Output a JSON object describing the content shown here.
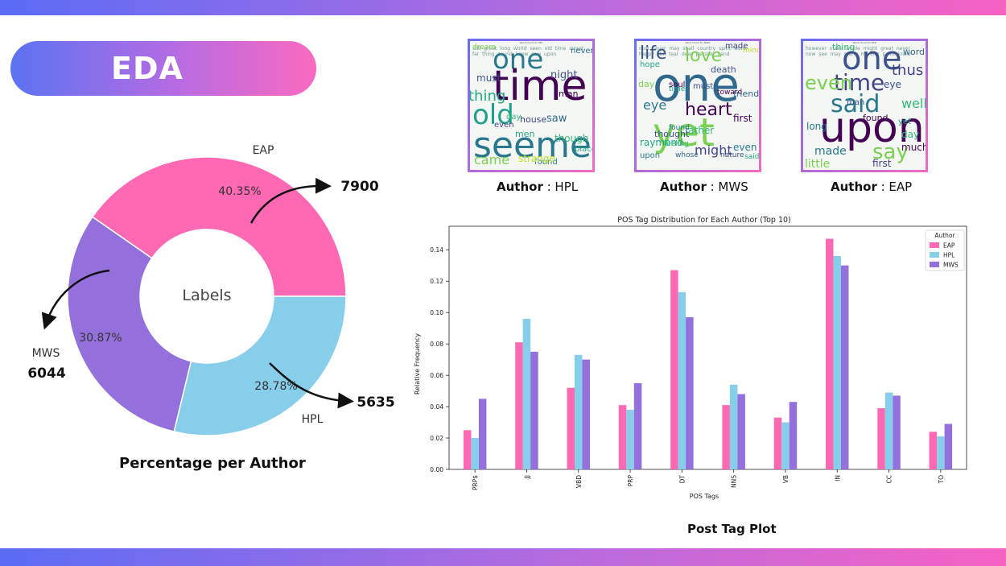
{
  "header": {
    "title": "EDA"
  },
  "colors": {
    "eap": "#ff69b4",
    "hpl": "#87ceeb",
    "mws": "#9370db",
    "accent_start": "#5b6cf5",
    "accent_end": "#f762c4"
  },
  "icons": [
    "curved-arrow-icon"
  ],
  "donut": {
    "center_label": "Labels",
    "caption": "Percentage per Author",
    "slices": [
      {
        "name": "EAP",
        "percent_label": "40.35%",
        "count": "7900",
        "value": 40.35
      },
      {
        "name": "HPL",
        "percent_label": "28.78%",
        "count": "5635",
        "value": 28.78
      },
      {
        "name": "MWS",
        "percent_label": "30.87%",
        "count": "6044",
        "value": 30.87
      }
    ]
  },
  "wordclouds": [
    {
      "caption_bold": "Author",
      "caption_rest": " : HPL",
      "title": "Word Cloud for HPL",
      "big_words": [
        "one",
        "time",
        "old",
        "seemed",
        "thing",
        "came",
        "saw",
        "though",
        "house",
        "night",
        "men",
        "even",
        "found",
        "must",
        "dream",
        "man",
        "never",
        "place",
        "strange",
        "day"
      ],
      "small_words": "still great long world seen old time street far thing sound know saw upon"
    },
    {
      "caption_bold": "Author",
      "caption_rest": " : MWS",
      "title": "Word Cloud for MWS",
      "big_words": [
        "life",
        "one",
        "yet",
        "love",
        "heart",
        "eye",
        "might",
        "even",
        "death",
        "father",
        "first",
        "thought",
        "hope",
        "made",
        "friend",
        "day",
        "upon",
        "time",
        "must",
        "raymond",
        "soul",
        "mind",
        "feeling",
        "found",
        "whose",
        "toward",
        "nature",
        "said"
      ],
      "small_words": "now never may shall country spirit word happy still tear dear passion hand"
    },
    {
      "caption_bold": "Author",
      "caption_rest": " : EAP",
      "title": "Word Cloud for EAP",
      "big_words": [
        "upon",
        "one",
        "time",
        "said",
        "say",
        "even",
        "well",
        "thus",
        "made",
        "little",
        "first",
        "much",
        "day",
        "eye",
        "word",
        "found",
        "thing",
        "man",
        "long",
        "yet"
      ],
      "small_words": "however make whole might great never now see may many manner point know"
    }
  ],
  "pos_caption": "Post Tag Plot",
  "chart_data": [
    {
      "type": "pie",
      "title": "",
      "center_label": "Labels",
      "categories": [
        "EAP",
        "HPL",
        "MWS"
      ],
      "values": [
        40.35,
        28.78,
        30.87
      ],
      "counts": [
        7900,
        5635,
        6044
      ],
      "legend": "none"
    },
    {
      "type": "bar",
      "title": "POS Tag Distribution for Each Author (Top 10)",
      "xlabel": "POS Tags",
      "ylabel": "Relative Frequency",
      "categories": [
        "PRP$",
        "JJ",
        "VBD",
        "PRP",
        "DT",
        "NNS",
        "VB",
        "IN",
        "CC",
        "TO"
      ],
      "series": [
        {
          "name": "EAP",
          "values": [
            0.025,
            0.081,
            0.052,
            0.041,
            0.127,
            0.041,
            0.033,
            0.147,
            0.039,
            0.024
          ]
        },
        {
          "name": "HPL",
          "values": [
            0.02,
            0.096,
            0.073,
            0.038,
            0.113,
            0.054,
            0.03,
            0.136,
            0.049,
            0.021
          ]
        },
        {
          "name": "MWS",
          "values": [
            0.045,
            0.075,
            0.07,
            0.055,
            0.097,
            0.048,
            0.043,
            0.13,
            0.047,
            0.029
          ]
        }
      ],
      "ylim": [
        0,
        0.155
      ],
      "yticks": [
        "0.00",
        "0.02",
        "0.04",
        "0.06",
        "0.08",
        "0.10",
        "0.12",
        "0.14"
      ],
      "legend_title": "Author",
      "legend": "top-right",
      "grid": false
    }
  ]
}
